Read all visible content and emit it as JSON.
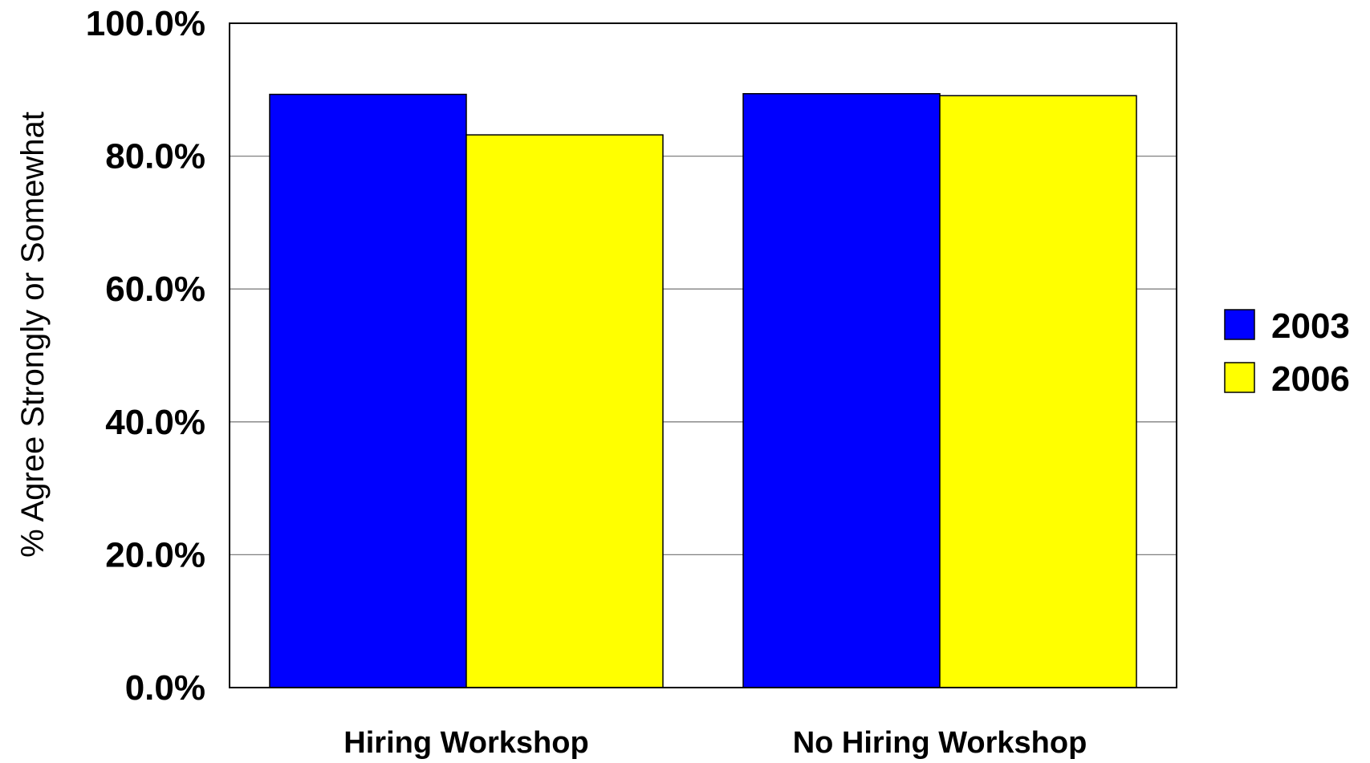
{
  "chart_data": {
    "type": "bar",
    "title": "",
    "xlabel": "",
    "ylabel": "% Agree Strongly or Somewhat",
    "categories": [
      "Hiring Workshop",
      "No Hiring Workshop"
    ],
    "series": [
      {
        "name": "2003",
        "color": "#0000FF",
        "values": [
          89.3,
          89.4
        ]
      },
      {
        "name": "2006",
        "color": "#FFFF00",
        "values": [
          83.2,
          89.1
        ]
      }
    ],
    "ylim": [
      0,
      100
    ],
    "yticks": [
      0,
      20,
      40,
      60,
      80,
      100
    ],
    "ytick_labels": [
      "0.0%",
      "20.0%",
      "40.0%",
      "60.0%",
      "80.0%",
      "100.0%"
    ],
    "grid": true,
    "legend": "right"
  }
}
